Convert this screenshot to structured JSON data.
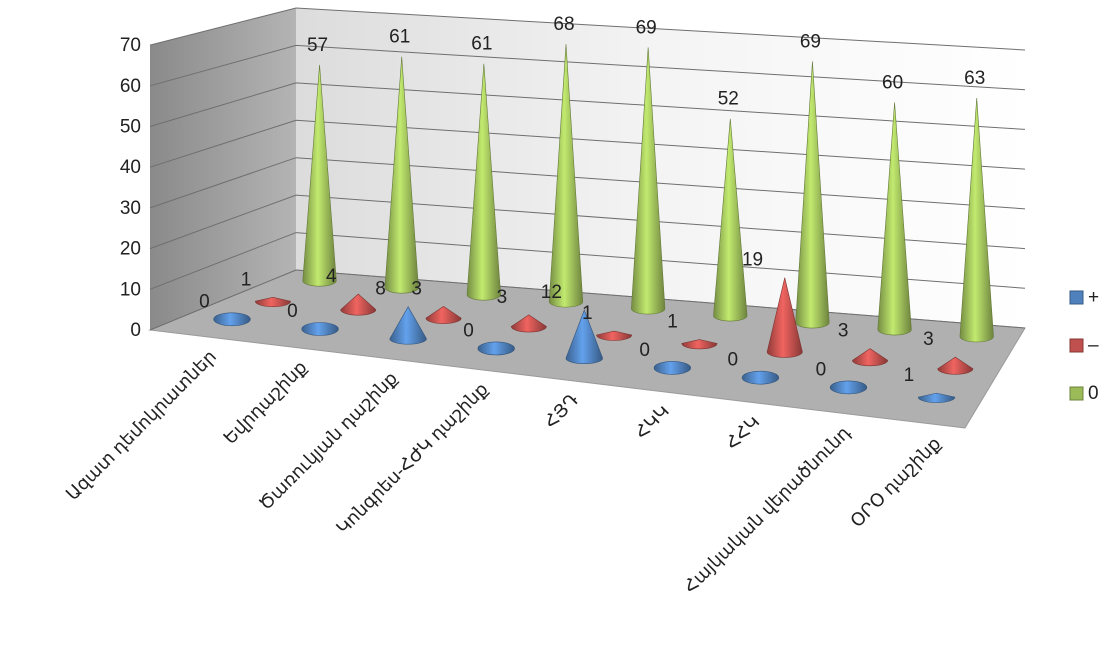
{
  "chart_data": {
    "type": "bar",
    "bar_shape": "cone",
    "projection": "3d",
    "categories": [
      "Ազատ դեմոկրատներ",
      "Եվրդաշինք",
      "Ծառուկյան դաշինք",
      "Կոնգրես-ՀԺԿ դաշինք",
      "ՀՅԴ",
      "ՀԿԿ",
      "ՀՀԿ",
      "Հայկական վերածնունդ",
      "ՕՐՕ դաշինք"
    ],
    "series": [
      {
        "name": "+",
        "color": "#4f81bd",
        "values": [
          0,
          0,
          8,
          0,
          12,
          0,
          0,
          0,
          1
        ]
      },
      {
        "name": "–",
        "color": "#c0504d",
        "values": [
          1,
          4,
          3,
          3,
          1,
          1,
          19,
          3,
          3
        ]
      },
      {
        "name": "0",
        "color": "#9bbb59",
        "values": [
          57,
          61,
          61,
          68,
          69,
          52,
          69,
          60,
          63
        ]
      }
    ],
    "ylim": [
      0,
      70
    ],
    "yticks": [
      "0",
      "10",
      "20",
      "30",
      "40",
      "50",
      "60",
      "70"
    ],
    "grid": true,
    "legend_position": "right"
  }
}
